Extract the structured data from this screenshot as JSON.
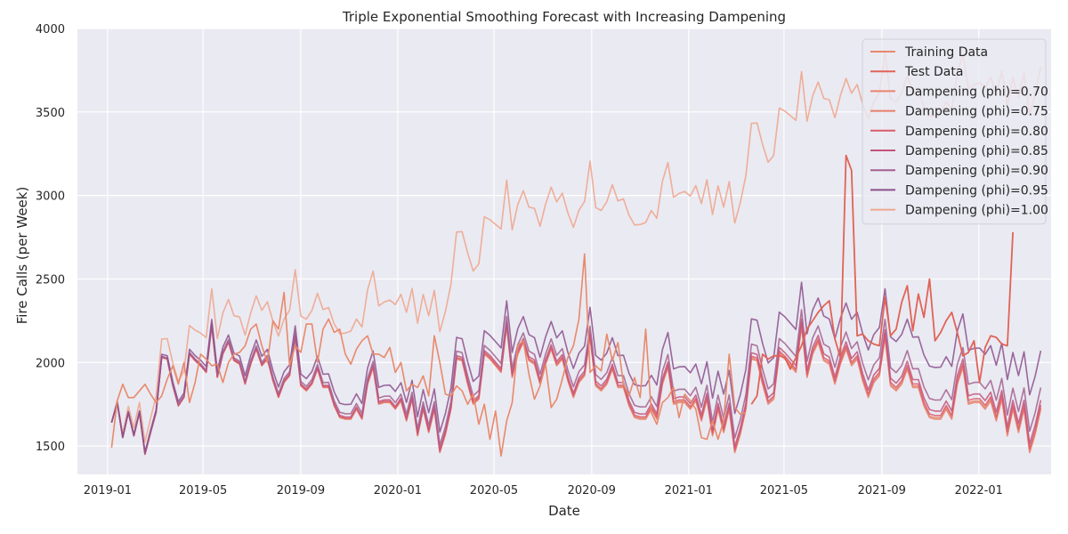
{
  "chart_data": {
    "type": "line",
    "title": "Triple Exponential Smoothing Forecast with Increasing Dampening",
    "xlabel": "Date",
    "ylabel": "Fire Calls (per Week)",
    "x_range": [
      "2018-11-24",
      "2022-04-02"
    ],
    "ylim": [
      1330,
      4000
    ],
    "x_ticks": [
      "2019-01-01",
      "2019-05-01",
      "2019-09-01",
      "2020-01-01",
      "2020-05-01",
      "2020-09-01",
      "2021-01-01",
      "2021-05-01",
      "2021-09-01",
      "2022-01-01"
    ],
    "x_tick_labels": [
      "2019-01",
      "2019-05",
      "2019-09",
      "2020-01",
      "2020-05",
      "2020-09",
      "2021-01",
      "2021-05",
      "2021-09",
      "2022-01"
    ],
    "y_ticks": [
      1500,
      2000,
      2500,
      3000,
      3500,
      4000
    ],
    "y_tick_labels": [
      "1500",
      "2000",
      "2500",
      "3000",
      "3500",
      "4000"
    ],
    "grid": true,
    "background": "#eaeaf2",
    "legend_position": "top-right",
    "start_date": "2019-01-06",
    "step_days": 7,
    "training": {
      "name": "Training Data",
      "color": "#e8896b",
      "values": [
        1490,
        1770,
        1870,
        1790,
        1790,
        1830,
        1870,
        1810,
        1760,
        1800,
        1900,
        1980,
        1870,
        2000,
        1760,
        1880,
        2050,
        2020,
        1980,
        1990,
        1880,
        2000,
        2050,
        2060,
        2100,
        2200,
        2230,
        2100,
        2000,
        2250,
        2200,
        2420,
        1980,
        2100,
        2060,
        2230,
        2230,
        2000,
        2200,
        2260,
        2180,
        2200,
        2050,
        1990,
        2080,
        2130,
        2160,
        2050,
        2050,
        2030,
        2090,
        1940,
        2000,
        1830,
        1870,
        1850,
        1920,
        1800,
        2160,
        2000,
        1810,
        1800,
        1860,
        1830,
        1750,
        1810,
        1630,
        1750,
        1540,
        1710,
        1440,
        1650,
        1760,
        2100,
        2130,
        1930,
        1780,
        1860,
        1990,
        1730,
        1780,
        1900,
        2030,
        2100,
        2260,
        2650,
        1940,
        1980,
        1950,
        2170,
        2010,
        2120,
        1870,
        1800,
        1910,
        1790,
        2200,
        1700,
        1630,
        1760,
        1790,
        1850,
        1670,
        1810,
        1770,
        1720,
        1550,
        1540,
        1650,
        1540,
        1650,
        2050,
        1730,
        1690,
        1700
      ]
    },
    "test": {
      "name": "Test Data",
      "color": "#e06357",
      "start_index": 115,
      "values": [
        1750,
        1800,
        2050,
        2020,
        2040,
        2040,
        2030,
        1960,
        2030,
        2100,
        2200,
        2250,
        2300,
        2340,
        2370,
        2140,
        2030,
        3240,
        3150,
        2160,
        2170,
        2130,
        2110,
        2100,
        2390,
        2160,
        2200,
        2360,
        2460,
        2190,
        2410,
        2270,
        2500,
        2130,
        2180,
        2250,
        2300,
        2180,
        2040,
        2060,
        2130,
        1880,
        2090,
        2160,
        2150,
        2110,
        2100,
        2780
      ]
    },
    "forecast_base": [
      1640,
      1760,
      1550,
      1700,
      1560,
      1700,
      1450,
      1580,
      1700,
      2030,
      2020,
      1860,
      1740,
      1790,
      2050,
      2010,
      1980,
      1940,
      2220,
      1910,
      2050,
      2120,
      2010,
      1990,
      1870,
      1990,
      2080,
      1980,
      2020,
      1890,
      1790,
      1880,
      1920,
      2150,
      1860,
      1830,
      1870,
      1960,
      1850,
      1850,
      1740,
      1670,
      1660,
      1660,
      1720,
      1660,
      1870,
      1970,
      1750,
      1760,
      1760,
      1720,
      1770,
      1650,
      1780,
      1560,
      1720,
      1580,
      1720,
      1460,
      1570,
      1720,
      2020,
      2010,
      1870,
      1750,
      1780,
      2050,
      2020,
      1980,
      1940,
      2220,
      1910,
      2050,
      2120,
      2010,
      1990,
      1870,
      1990,
      2080,
      1980,
      2020,
      1890,
      1790,
      1880,
      1920,
      2150,
      1860,
      1830,
      1870,
      1960,
      1850,
      1850,
      1740,
      1670,
      1660,
      1660,
      1720,
      1660,
      1870,
      1970,
      1750,
      1760,
      1760,
      1720,
      1770,
      1650,
      1780,
      1560,
      1720,
      1580,
      1720,
      1460,
      1570,
      1720,
      2020,
      2010,
      1870,
      1750,
      1780,
      2050,
      2020,
      1980,
      1940,
      2220,
      1910,
      2050,
      2120,
      2010,
      1990,
      1870,
      1990,
      2080,
      1980,
      2020,
      1890,
      1790,
      1880,
      1920,
      2150,
      1860,
      1830,
      1870,
      1960,
      1850,
      1850,
      1740,
      1670,
      1660,
      1660,
      1720,
      1660,
      1870,
      1970,
      1750,
      1760,
      1760,
      1720,
      1770,
      1650,
      1780,
      1560,
      1720,
      1580,
      1720,
      1460,
      1570,
      1720
    ],
    "series": [
      {
        "name": "Dampening (phi)=0.70",
        "color": "#e9856e",
        "drift_end": 0
      },
      {
        "name": "Dampening (phi)=0.75",
        "color": "#e6806a",
        "drift_end": 10
      },
      {
        "name": "Dampening (phi)=0.80",
        "color": "#d85c6a",
        "drift_end": 25
      },
      {
        "name": "Dampening (phi)=0.85",
        "color": "#c2547a",
        "drift_end": 55
      },
      {
        "name": "Dampening (phi)=0.90",
        "color": "#a35f8e",
        "drift_end": 130
      },
      {
        "name": "Dampening (phi)=0.95",
        "color": "#8b4f8c",
        "drift_end": 350
      },
      {
        "name": "Dampening (phi)=1.00",
        "color": "#eea78f",
        "drift_end": 2050
      }
    ]
  }
}
